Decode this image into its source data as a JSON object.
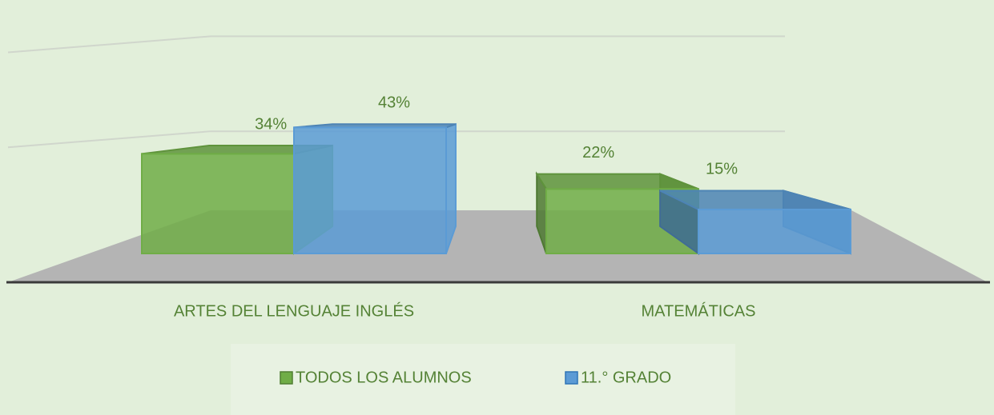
{
  "chart_data": {
    "type": "bar3d",
    "categories": [
      "ARTES DEL LENGUAJE INGLÉS",
      "MATEMÁTICAS"
    ],
    "series": [
      {
        "name": "TODOS LOS ALUMNOS",
        "color": "#70ad47",
        "values": [
          34,
          22
        ],
        "value_labels": [
          "34%",
          "22%"
        ]
      },
      {
        "name": "11.° GRADO",
        "color": "#5b9bd5",
        "values": [
          43,
          15
        ],
        "value_labels": [
          "43%",
          "15%"
        ]
      }
    ],
    "ylim": [
      0,
      90
    ],
    "yticks": [
      0,
      40,
      80
    ],
    "grid": true,
    "legend": "bottom"
  }
}
